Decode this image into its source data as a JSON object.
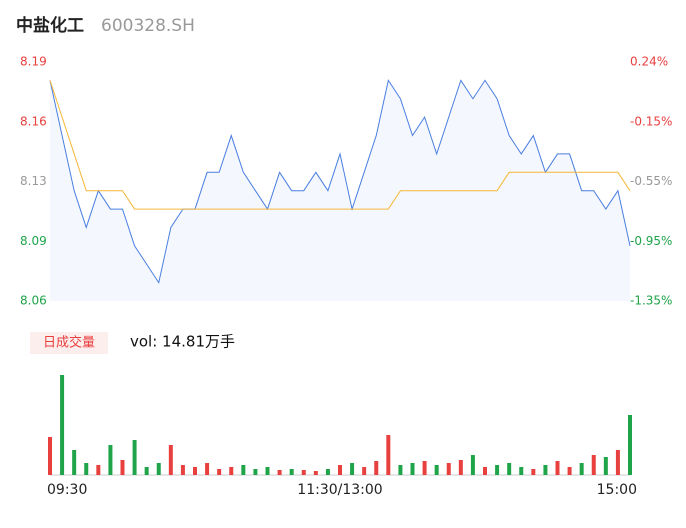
{
  "chart_data": {
    "type": "line",
    "title": "中盐化工",
    "subtitle": "600328.SH",
    "x": [
      0,
      5,
      10,
      15,
      20,
      25,
      30,
      35,
      40,
      45,
      50,
      55,
      60,
      65,
      70,
      75,
      80,
      85,
      90,
      95,
      100,
      105,
      110,
      115,
      120,
      125,
      130,
      135,
      140,
      145,
      150,
      155,
      160,
      165,
      170,
      175,
      180,
      185,
      190,
      195,
      200,
      205,
      210,
      215,
      220,
      225,
      230,
      235,
      240
    ],
    "xlim": [
      0,
      240
    ],
    "xticks": [
      {
        "value": 0,
        "label": "09:30"
      },
      {
        "value": 120,
        "label": "11:30/13:00"
      },
      {
        "value": 240,
        "label": "15:00"
      }
    ],
    "ylim": [
      8.06,
      8.19
    ],
    "yticks": [
      {
        "value": 8.19,
        "label": "8.19"
      },
      {
        "value": 8.1575,
        "label": "8.16"
      },
      {
        "value": 8.125,
        "label": "8.13"
      },
      {
        "value": 8.0925,
        "label": "8.09"
      },
      {
        "value": 8.06,
        "label": "8.06"
      }
    ],
    "y2lim": [
      -1.35,
      0.24
    ],
    "y2ticks": [
      {
        "value": 0.24,
        "label": "0.24%"
      },
      {
        "value": -0.1575,
        "label": "-0.15%"
      },
      {
        "value": -0.555,
        "label": "-0.55%"
      },
      {
        "value": -0.9525,
        "label": "-0.95%"
      },
      {
        "value": -1.35,
        "label": "-1.35%"
      }
    ],
    "price": {
      "color": "#4a7fe0",
      "fill": "#f4f7fd",
      "values": [
        8.18,
        8.15,
        8.12,
        8.1,
        8.12,
        8.11,
        8.11,
        8.09,
        8.08,
        8.07,
        8.1,
        8.11,
        8.11,
        8.13,
        8.13,
        8.15,
        8.13,
        8.12,
        8.11,
        8.13,
        8.12,
        8.12,
        8.13,
        8.12,
        8.14,
        8.11,
        8.13,
        8.15,
        8.18,
        8.17,
        8.15,
        8.16,
        8.14,
        8.16,
        8.18,
        8.17,
        8.18,
        8.17,
        8.15,
        8.14,
        8.15,
        8.13,
        8.14,
        8.14,
        8.12,
        8.12,
        8.11,
        8.12,
        8.09
      ]
    },
    "average": {
      "color": "#f5b73b",
      "values": [
        8.18,
        8.16,
        8.14,
        8.12,
        8.12,
        8.12,
        8.12,
        8.11,
        8.11,
        8.11,
        8.11,
        8.11,
        8.11,
        8.11,
        8.11,
        8.11,
        8.11,
        8.11,
        8.11,
        8.11,
        8.11,
        8.11,
        8.11,
        8.11,
        8.11,
        8.11,
        8.11,
        8.11,
        8.11,
        8.12,
        8.12,
        8.12,
        8.12,
        8.12,
        8.12,
        8.12,
        8.12,
        8.12,
        8.13,
        8.13,
        8.13,
        8.13,
        8.13,
        8.13,
        8.13,
        8.13,
        8.13,
        8.13,
        8.12
      ]
    },
    "volume": {
      "up_color": "#e8403f",
      "down_color": "#1fa44a",
      "values": [
        38,
        100,
        25,
        12,
        10,
        30,
        15,
        35,
        8,
        12,
        30,
        10,
        8,
        12,
        6,
        8,
        10,
        6,
        8,
        5,
        6,
        5,
        4,
        6,
        10,
        12,
        8,
        14,
        40,
        10,
        12,
        14,
        10,
        12,
        15,
        20,
        8,
        10,
        12,
        8,
        6,
        10,
        14,
        8,
        12,
        20,
        18,
        25,
        60
      ]
    },
    "volume_label": "日成交量",
    "volume_text": "vol: 14.81万手"
  }
}
